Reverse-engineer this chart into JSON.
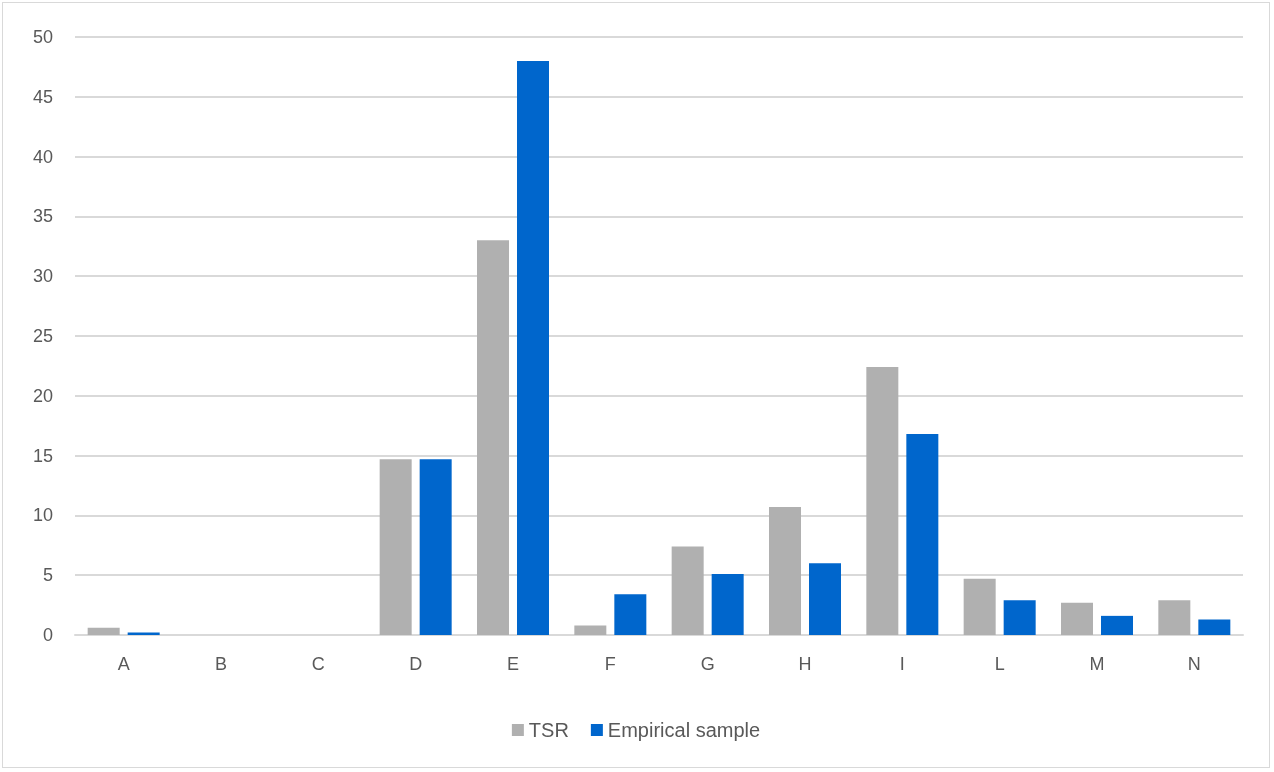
{
  "chart_data": {
    "type": "bar",
    "categories": [
      "A",
      "B",
      "C",
      "D",
      "E",
      "F",
      "G",
      "H",
      "I",
      "L",
      "M",
      "N"
    ],
    "series": [
      {
        "name": "TSR",
        "color": "#b0b0b0",
        "values": [
          0.6,
          0,
          0,
          14.7,
          33.0,
          0.8,
          7.4,
          10.7,
          22.4,
          4.7,
          2.7,
          2.9
        ]
      },
      {
        "name": "Empirical sample",
        "color": "#0066cc",
        "values": [
          0.2,
          0,
          0,
          14.7,
          48.0,
          3.4,
          5.1,
          6.0,
          16.8,
          2.9,
          1.6,
          1.3
        ]
      }
    ],
    "ylim": [
      0,
      50
    ],
    "yticks": [
      0,
      5,
      10,
      15,
      20,
      25,
      30,
      35,
      40,
      45,
      50
    ],
    "grid": "y",
    "legend": "bottom"
  }
}
